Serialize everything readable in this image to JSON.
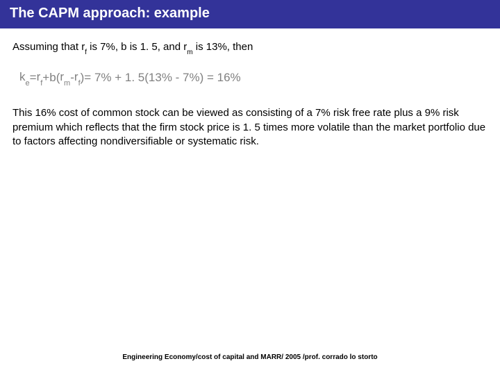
{
  "title": "The CAPM approach: example",
  "assumption": {
    "prefix": "Assuming that r",
    "sub1": "f",
    "p2": " is 7%, b is 1. 5, and r",
    "sub2": "m",
    "p3": " is 13%, then"
  },
  "formula": {
    "lhs_k": "k",
    "lhs_e": "e",
    "eq1": " = ",
    "rf_r": "r",
    "rf_f": "f",
    "plus": " + ",
    "b": "b",
    "lp": "(",
    "rm_r": "r",
    "rm_m": "m",
    "minus": "- ",
    "rf2_r": "r",
    "rf2_f": "f",
    "rp": " )",
    "rhs": " = 7% + 1. 5(13% - 7%) = 16%"
  },
  "paragraph": "This 16% cost of common stock can be viewed as consisting of a 7% risk free rate plus a 9% risk premium which reflects that the firm stock price is 1. 5 times more volatile than the market portfolio due to factors affecting nondiversifiable or systematic risk.",
  "footer": "Engineering Economy/cost of capital and MARR/ 2005 /prof. corrado lo storto",
  "colors": {
    "title_bg": "#333399",
    "title_fg": "#ffffff",
    "formula_fg": "#808080",
    "body_fg": "#000000",
    "page_bg": "#ffffff"
  }
}
